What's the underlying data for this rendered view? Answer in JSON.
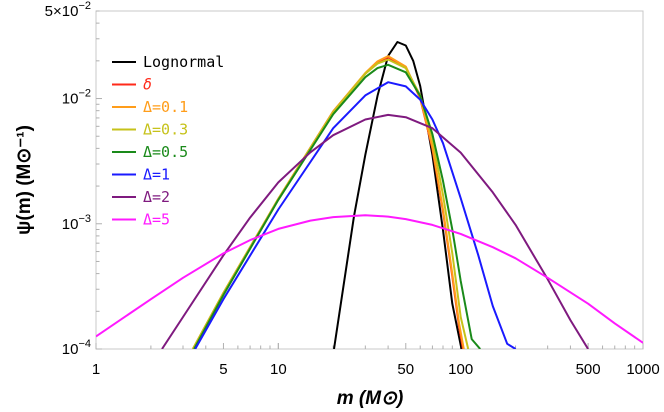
{
  "chart_data": {
    "type": "line",
    "xlabel": "m (M⊙)",
    "ylabel": "ψ(m) (M⊙⁻¹)",
    "xscale": "log",
    "yscale": "log",
    "xlim": [
      1,
      1000
    ],
    "ylim": [
      0.0001,
      0.05
    ],
    "x_ticks": [
      {
        "value": 1,
        "label": "1"
      },
      {
        "value": 5,
        "label": "5"
      },
      {
        "value": 10,
        "label": "10"
      },
      {
        "value": 50,
        "label": "50"
      },
      {
        "value": 100,
        "label": "100"
      },
      {
        "value": 500,
        "label": "500"
      },
      {
        "value": 1000,
        "label": "1000"
      }
    ],
    "y_ticks": [
      {
        "value": 0.0001,
        "base": "10",
        "exp": "−4",
        "mant": ""
      },
      {
        "value": 0.001,
        "base": "10",
        "exp": "−3",
        "mant": ""
      },
      {
        "value": 0.01,
        "base": "10",
        "exp": "−2",
        "mant": ""
      },
      {
        "value": 0.05,
        "base": "10",
        "exp": "−2",
        "mant": "5×"
      }
    ],
    "legend_position": "top-left",
    "series": [
      {
        "name": "Lognormal",
        "color": "#000000",
        "x": [
          20.2,
          26,
          30,
          35,
          40,
          45,
          50,
          55,
          60,
          70,
          80,
          90,
          101
        ],
        "y": [
          0.0001,
          0.00115,
          0.00355,
          0.0105,
          0.0219,
          0.0283,
          0.0265,
          0.0199,
          0.0126,
          0.00355,
          0.00089,
          0.00023,
          0.0001
        ]
      },
      {
        "name": "δ",
        "color": "#ff2a1a",
        "x": [
          3.4,
          5,
          10,
          20,
          30,
          35,
          40,
          50,
          60,
          70,
          80,
          90,
          98,
          103
        ],
        "y": [
          0.0001,
          0.00028,
          0.00158,
          0.0079,
          0.0158,
          0.0195,
          0.0214,
          0.0178,
          0.01,
          0.00398,
          0.00125,
          0.00038,
          0.00015,
          0.0001
        ]
      },
      {
        "name": "Δ=0.1",
        "color": "#ff9d1a",
        "x": [
          3.4,
          5,
          10,
          20,
          30,
          35,
          40,
          50,
          60,
          70,
          80,
          90,
          98,
          104
        ],
        "y": [
          0.0001,
          0.00028,
          0.00158,
          0.0079,
          0.016,
          0.0198,
          0.0218,
          0.018,
          0.0102,
          0.0041,
          0.0013,
          0.0004,
          0.00016,
          0.0001
        ]
      },
      {
        "name": "Δ=0.3",
        "color": "#c6c21a",
        "x": [
          3.4,
          5,
          10,
          20,
          30,
          35,
          40,
          50,
          60,
          70,
          80,
          90,
          100,
          110
        ],
        "y": [
          0.0001,
          0.00028,
          0.00158,
          0.0078,
          0.0158,
          0.019,
          0.0205,
          0.0175,
          0.0106,
          0.0048,
          0.0017,
          0.00058,
          0.00018,
          0.0001
        ]
      },
      {
        "name": "Δ=0.5",
        "color": "#1a8a1a",
        "x": [
          3.45,
          5,
          10,
          20,
          30,
          35,
          40,
          50,
          60,
          70,
          80,
          90,
          100,
          115,
          128
        ],
        "y": [
          0.0001,
          0.00027,
          0.00155,
          0.0075,
          0.0148,
          0.0175,
          0.0186,
          0.0162,
          0.0105,
          0.0052,
          0.0022,
          0.0009,
          0.00035,
          0.00012,
          0.0001
        ]
      },
      {
        "name": "Δ=1",
        "color": "#1a1aff",
        "x": [
          3.5,
          5,
          10,
          20,
          30,
          40,
          50,
          60,
          70,
          80,
          100,
          125,
          150,
          180,
          200
        ],
        "y": [
          0.0001,
          0.00025,
          0.0013,
          0.0058,
          0.0106,
          0.0135,
          0.0125,
          0.0098,
          0.0068,
          0.0044,
          0.0016,
          0.00056,
          0.00022,
          0.00011,
          0.0001
        ]
      },
      {
        "name": "Δ=2",
        "color": "#7f1a7f",
        "x": [
          2.3,
          3,
          5,
          7,
          10,
          15,
          20,
          30,
          40,
          50,
          70,
          100,
          150,
          200,
          300,
          400,
          500
        ],
        "y": [
          0.0001,
          0.00018,
          0.00056,
          0.00112,
          0.00214,
          0.00372,
          0.0051,
          0.0068,
          0.0074,
          0.0071,
          0.0058,
          0.0037,
          0.00178,
          0.00098,
          0.00036,
          0.00017,
          0.0001
        ]
      },
      {
        "name": "Δ=5",
        "color": "#ff1aff",
        "x": [
          1,
          2,
          3,
          5,
          7,
          10,
          15,
          20,
          30,
          40,
          50,
          70,
          100,
          150,
          200,
          300,
          500,
          700,
          1000
        ],
        "y": [
          0.000126,
          0.00025,
          0.00037,
          0.00058,
          0.00074,
          0.00091,
          0.00106,
          0.00113,
          0.00117,
          0.00114,
          0.00109,
          0.00098,
          0.00083,
          0.00065,
          0.00053,
          0.00037,
          0.00023,
          0.00016,
          0.000112
        ]
      }
    ]
  }
}
